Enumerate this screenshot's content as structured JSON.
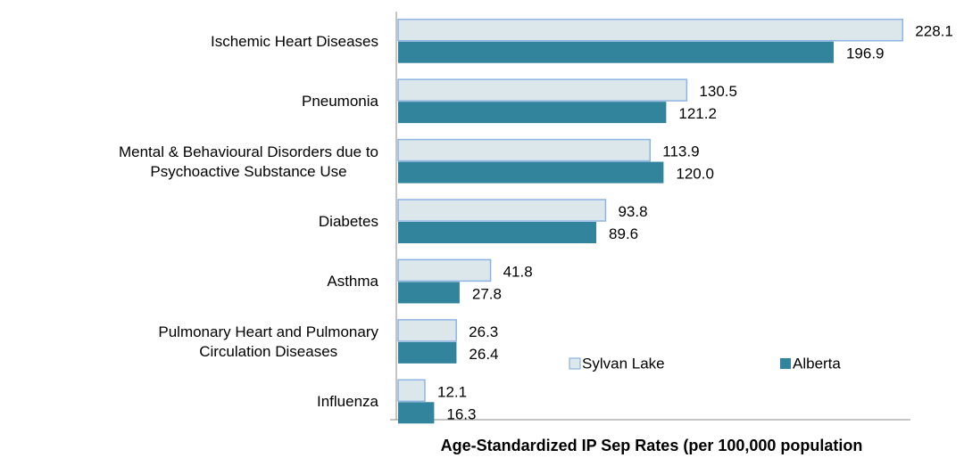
{
  "chart_data": {
    "type": "bar",
    "orientation": "horizontal",
    "x_label": "Age-Standardized IP Sep Rates (per 100,000 population",
    "categories": [
      "Ischemic Heart Diseases",
      "Pneumonia",
      "Mental & Behavioural Disorders due to\nPsychoactive Substance Use",
      "Diabetes",
      "Asthma",
      "Pulmonary Heart and Pulmonary\nCirculation Diseases",
      "Influenza"
    ],
    "series": [
      {
        "name": "Sylvan Lake",
        "color": "#dbe7ea",
        "border": "#8eb4e3",
        "values": [
          228.1,
          130.5,
          113.9,
          93.8,
          41.8,
          26.3,
          12.1
        ],
        "value_labels": [
          "228.1",
          "130.5",
          "113.9",
          "93.8",
          "41.8",
          "26.3",
          "12.1"
        ]
      },
      {
        "name": "Alberta",
        "color": "#31849b",
        "values": [
          196.9,
          121.2,
          120.0,
          89.6,
          27.8,
          26.4,
          16.3
        ],
        "value_labels": [
          "196.9",
          "121.2",
          "120.0",
          "89.6",
          "27.8",
          "26.4",
          "16.3"
        ]
      }
    ],
    "xlim": [
      0,
      230
    ],
    "legend": "lower right"
  }
}
